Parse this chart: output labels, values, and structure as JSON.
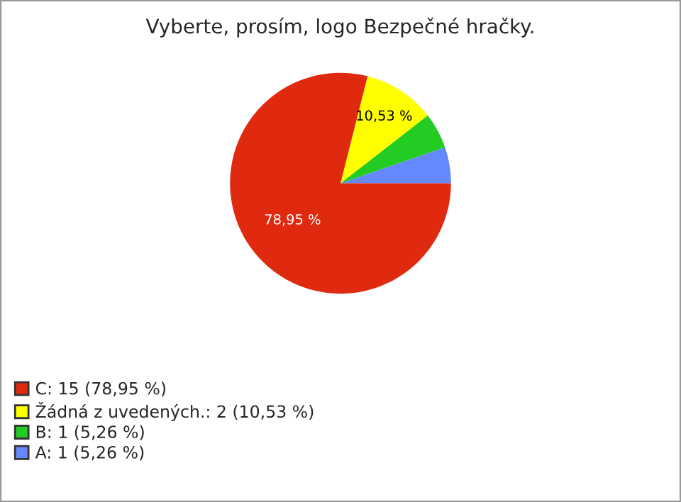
{
  "chart_data": {
    "type": "pie",
    "title": "Vyberte, prosím, logo Bezpečné hračky.",
    "categories": [
      "C: 15 (78,95 %)",
      "Žádná z uvedených.: 2 (10,53 %)",
      "B: 1 (5,26 %)",
      "A: 1 (5,26 %)"
    ],
    "values": [
      78.95,
      10.53,
      5.26,
      5.26
    ],
    "colors": [
      "#e02a10",
      "#ffff00",
      "#22cc22",
      "#6688ff"
    ],
    "value_labels": [
      "78,95 %",
      "10,53 %",
      null,
      null
    ],
    "legend": "bottom left"
  }
}
